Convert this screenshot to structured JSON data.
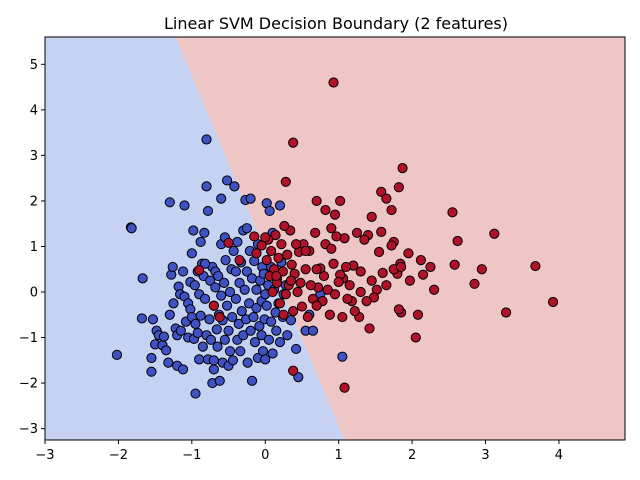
{
  "chart_data": {
    "type": "scatter",
    "title": "Linear SVM Decision Boundary (2 features)",
    "xlabel": "",
    "ylabel": "",
    "xlim": [
      -3.0,
      4.9
    ],
    "ylim": [
      -3.25,
      5.6
    ],
    "xticks": [
      -3,
      -2,
      -1,
      0,
      1,
      2,
      3,
      4
    ],
    "yticks": [
      -3,
      -2,
      -1,
      0,
      1,
      2,
      3,
      4,
      5
    ],
    "decision_boundary": {
      "points": [
        [
          -1.22,
          5.6
        ],
        [
          1.08,
          -3.25
        ]
      ]
    },
    "regions": {
      "left_color": "#c6d2f2",
      "right_color": "#efc6c6"
    },
    "series": [
      {
        "class": 0,
        "color": "#4051c4",
        "points": [
          [
            -2.02,
            -1.38
          ],
          [
            -1.83,
            1.42
          ],
          [
            -1.82,
            1.4
          ],
          [
            -1.67,
            0.3
          ],
          [
            -1.68,
            -0.58
          ],
          [
            -1.55,
            -1.45
          ],
          [
            -1.55,
            -1.75
          ],
          [
            -1.53,
            -0.6
          ],
          [
            -1.5,
            -1.15
          ],
          [
            -1.48,
            -0.85
          ],
          [
            -1.45,
            -0.95
          ],
          [
            -1.4,
            -1.17
          ],
          [
            -1.35,
            -1.28
          ],
          [
            -1.32,
            -1.55
          ],
          [
            -1.3,
            -0.5
          ],
          [
            -1.3,
            1.97
          ],
          [
            -1.28,
            0.38
          ],
          [
            -1.26,
            0.55
          ],
          [
            -1.25,
            -0.25
          ],
          [
            -1.22,
            -0.8
          ],
          [
            -1.2,
            -1.62
          ],
          [
            -1.2,
            -0.95
          ],
          [
            -1.18,
            0.12
          ],
          [
            -1.16,
            -0.05
          ],
          [
            -1.15,
            -0.85
          ],
          [
            -1.12,
            0.45
          ],
          [
            -1.12,
            -1.7
          ],
          [
            -1.1,
            -0.1
          ],
          [
            -1.1,
            1.9
          ],
          [
            -1.08,
            -0.65
          ],
          [
            -1.05,
            -0.25
          ],
          [
            -1.05,
            -1.0
          ],
          [
            -1.02,
            0.22
          ],
          [
            -1.02,
            -0.38
          ],
          [
            -1.0,
            0.85
          ],
          [
            -1.0,
            -0.55
          ],
          [
            -0.98,
            1.35
          ],
          [
            -0.97,
            -1.03
          ],
          [
            -0.96,
            0.15
          ],
          [
            -0.95,
            -2.23
          ],
          [
            -0.92,
            -0.9
          ],
          [
            -0.92,
            0.45
          ],
          [
            -0.9,
            -0.05
          ],
          [
            -0.9,
            -1.48
          ],
          [
            -0.88,
            1.1
          ],
          [
            -0.88,
            -0.52
          ],
          [
            -0.86,
            0.62
          ],
          [
            -0.85,
            -1.2
          ],
          [
            -0.84,
            0.35
          ],
          [
            -0.83,
            1.3
          ],
          [
            -0.82,
            -0.15
          ],
          [
            -0.8,
            3.35
          ],
          [
            -0.8,
            -0.95
          ],
          [
            -0.8,
            2.32
          ],
          [
            -0.78,
            -1.48
          ],
          [
            -0.78,
            1.78
          ],
          [
            -0.76,
            -0.6
          ],
          [
            -0.75,
            0.25
          ],
          [
            -0.74,
            -1.05
          ],
          [
            -0.72,
            0.55
          ],
          [
            -0.72,
            -2.0
          ],
          [
            -0.7,
            -0.3
          ],
          [
            -0.7,
            -1.7
          ],
          [
            -0.68,
            0.1
          ],
          [
            -0.68,
            0.45
          ],
          [
            -0.66,
            -0.82
          ],
          [
            -0.65,
            -1.2
          ],
          [
            -0.64,
            0.35
          ],
          [
            -0.63,
            -0.5
          ],
          [
            -0.62,
            -1.95
          ],
          [
            -0.6,
            -0.08
          ],
          [
            -0.6,
            1.05
          ],
          [
            -0.6,
            2.05
          ],
          [
            -0.58,
            -0.62
          ],
          [
            -0.58,
            -1.55
          ],
          [
            -0.56,
            0.2
          ],
          [
            -0.55,
            -1.05
          ],
          [
            -0.54,
            0.7
          ],
          [
            -0.52,
            -0.3
          ],
          [
            -0.52,
            2.45
          ],
          [
            -0.5,
            -1.62
          ],
          [
            -0.5,
            -0.85
          ],
          [
            -0.48,
            0.0
          ],
          [
            -0.48,
            -1.3
          ],
          [
            -0.46,
            0.5
          ],
          [
            -0.45,
            -0.55
          ],
          [
            -0.44,
            -1.5
          ],
          [
            -0.43,
            0.9
          ],
          [
            -0.42,
            2.32
          ],
          [
            -0.4,
            -0.15
          ],
          [
            -0.4,
            0.45
          ],
          [
            -0.38,
            -1.05
          ],
          [
            -0.38,
            1.1
          ],
          [
            -0.36,
            -0.7
          ],
          [
            -0.35,
            0.2
          ],
          [
            -0.34,
            -1.3
          ],
          [
            -0.33,
            0.65
          ],
          [
            -0.32,
            -0.42
          ],
          [
            -0.3,
            -0.95
          ],
          [
            -0.3,
            1.35
          ],
          [
            -0.28,
            0.05
          ],
          [
            -0.27,
            2.02
          ],
          [
            -0.26,
            -0.6
          ],
          [
            -0.25,
            0.45
          ],
          [
            -0.24,
            -1.55
          ],
          [
            -0.22,
            -0.25
          ],
          [
            -0.21,
            0.9
          ],
          [
            -0.2,
            -0.85
          ],
          [
            -0.2,
            2.05
          ],
          [
            -0.18,
            0.3
          ],
          [
            -0.18,
            -1.95
          ],
          [
            -0.16,
            -0.55
          ],
          [
            -0.15,
            0.68
          ],
          [
            -0.14,
            -1.1
          ],
          [
            -0.12,
            0.05
          ],
          [
            -0.12,
            -0.35
          ],
          [
            -0.1,
            -1.45
          ],
          [
            -0.1,
            1.05
          ],
          [
            -0.08,
            -0.75
          ],
          [
            -0.07,
            0.25
          ],
          [
            -0.05,
            -0.2
          ],
          [
            -0.05,
            -0.95
          ],
          [
            -0.04,
            0.55
          ],
          [
            -0.03,
            -1.3
          ],
          [
            -0.02,
            0.4
          ],
          [
            -0.01,
            -0.6
          ],
          [
            0.0,
            -0.05
          ],
          [
            0.02,
            1.95
          ],
          [
            0.02,
            -0.3
          ],
          [
            0.04,
            0.15
          ],
          [
            0.05,
            -1.05
          ],
          [
            0.06,
            1.78
          ],
          [
            0.08,
            -0.65
          ],
          [
            0.08,
            0.55
          ],
          [
            0.1,
            -1.35
          ],
          [
            0.12,
            0.05
          ],
          [
            0.14,
            -0.45
          ],
          [
            0.15,
            -0.85
          ],
          [
            0.16,
            0.3
          ],
          [
            0.18,
            -0.25
          ],
          [
            0.2,
            1.9
          ],
          [
            0.2,
            -1.1
          ],
          [
            0.22,
            0.65
          ],
          [
            0.24,
            -0.55
          ],
          [
            0.25,
            -0.05
          ],
          [
            0.28,
            0.15
          ],
          [
            0.3,
            -0.95
          ],
          [
            0.35,
            -0.62
          ],
          [
            0.42,
            -1.25
          ],
          [
            0.45,
            -1.87
          ],
          [
            0.55,
            -0.85
          ],
          [
            0.6,
            -0.5
          ],
          [
            0.65,
            -0.85
          ],
          [
            0.75,
            -0.05
          ],
          [
            1.05,
            -1.42
          ],
          [
            0.1,
            1.3
          ],
          [
            -0.25,
            1.4
          ],
          [
            -0.55,
            1.2
          ],
          [
            -0.95,
            -0.7
          ],
          [
            -1.38,
            -0.98
          ],
          [
            -0.7,
            -1.5
          ],
          [
            0.0,
            -1.48
          ],
          [
            -0.82,
            0.62
          ]
        ]
      },
      {
        "class": 1,
        "color": "#b0122a",
        "points": [
          [
            0.93,
            4.6
          ],
          [
            0.38,
            3.28
          ],
          [
            0.28,
            2.42
          ],
          [
            1.87,
            2.72
          ],
          [
            1.58,
            2.2
          ],
          [
            1.65,
            2.05
          ],
          [
            1.82,
            2.3
          ],
          [
            1.72,
            1.8
          ],
          [
            0.7,
            2.0
          ],
          [
            0.82,
            1.8
          ],
          [
            0.95,
            1.7
          ],
          [
            1.02,
            2.0
          ],
          [
            2.55,
            1.75
          ],
          [
            2.62,
            1.12
          ],
          [
            3.12,
            1.28
          ],
          [
            3.68,
            0.57
          ],
          [
            3.92,
            -0.22
          ],
          [
            3.28,
            -0.45
          ],
          [
            2.95,
            0.5
          ],
          [
            2.85,
            0.18
          ],
          [
            2.58,
            0.6
          ],
          [
            2.3,
            0.05
          ],
          [
            2.25,
            0.55
          ],
          [
            2.15,
            0.38
          ],
          [
            2.12,
            0.7
          ],
          [
            2.08,
            -0.5
          ],
          [
            2.05,
            -1.0
          ],
          [
            1.97,
            0.25
          ],
          [
            1.95,
            0.85
          ],
          [
            1.85,
            -0.45
          ],
          [
            1.84,
            0.62
          ],
          [
            1.82,
            -0.38
          ],
          [
            1.8,
            0.4
          ],
          [
            1.75,
            0.5
          ],
          [
            1.75,
            1.1
          ],
          [
            1.72,
            1.02
          ],
          [
            1.65,
            0.15
          ],
          [
            1.6,
            0.42
          ],
          [
            1.58,
            1.32
          ],
          [
            1.55,
            0.88
          ],
          [
            1.52,
            0.05
          ],
          [
            1.48,
            -0.12
          ],
          [
            1.45,
            1.65
          ],
          [
            1.42,
            -0.8
          ],
          [
            1.4,
            1.25
          ],
          [
            1.38,
            -0.2
          ],
          [
            1.35,
            1.15
          ],
          [
            1.3,
            0.45
          ],
          [
            1.28,
            -0.55
          ],
          [
            1.25,
            1.3
          ],
          [
            1.22,
            -0.42
          ],
          [
            1.2,
            0.58
          ],
          [
            1.18,
            -0.2
          ],
          [
            1.15,
            0.15
          ],
          [
            1.12,
            -0.15
          ],
          [
            1.1,
            0.55
          ],
          [
            1.08,
            1.18
          ],
          [
            1.06,
            0.3
          ],
          [
            1.05,
            -0.55
          ],
          [
            1.02,
            0.38
          ],
          [
            1.0,
            0.22
          ],
          [
            0.97,
            1.22
          ],
          [
            0.95,
            -0.05
          ],
          [
            0.93,
            0.62
          ],
          [
            0.9,
            1.4
          ],
          [
            0.88,
            -0.5
          ],
          [
            0.85,
            0.05
          ],
          [
            0.82,
            1.05
          ],
          [
            0.8,
            0.35
          ],
          [
            0.78,
            -0.2
          ],
          [
            0.75,
            0.52
          ],
          [
            0.72,
            0.1
          ],
          [
            0.7,
            0.5
          ],
          [
            0.68,
            1.3
          ],
          [
            0.65,
            -0.15
          ],
          [
            0.62,
            0.15
          ],
          [
            0.6,
            0.9
          ],
          [
            0.58,
            -0.55
          ],
          [
            0.55,
            0.5
          ],
          [
            0.52,
            1.05
          ],
          [
            0.5,
            -0.32
          ],
          [
            0.48,
            0.2
          ],
          [
            0.46,
            0.88
          ],
          [
            0.44,
            0.0
          ],
          [
            0.42,
            1.05
          ],
          [
            0.4,
            0.4
          ],
          [
            0.38,
            -0.42
          ],
          [
            0.36,
            0.6
          ],
          [
            0.34,
            1.35
          ],
          [
            0.32,
            0.15
          ],
          [
            0.3,
            0.82
          ],
          [
            0.28,
            -0.05
          ],
          [
            0.26,
            1.45
          ],
          [
            0.24,
            0.45
          ],
          [
            0.22,
            1.05
          ],
          [
            0.2,
            -0.25
          ],
          [
            0.18,
            0.75
          ],
          [
            0.16,
            0.2
          ],
          [
            0.14,
            1.25
          ],
          [
            0.12,
            0.5
          ],
          [
            0.1,
            0.0
          ],
          [
            0.08,
            0.9
          ],
          [
            0.06,
            0.35
          ],
          [
            0.04,
            1.15
          ],
          [
            0.02,
            0.7
          ],
          [
            0.0,
            1.2
          ],
          [
            -0.05,
            1.02
          ],
          [
            -0.12,
            0.85
          ],
          [
            -0.15,
            1.22
          ],
          [
            -0.5,
            1.08
          ],
          [
            -0.35,
            0.7
          ],
          [
            -0.7,
            -0.3
          ],
          [
            -0.62,
            -0.55
          ],
          [
            -0.9,
            0.48
          ],
          [
            0.38,
            -1.73
          ],
          [
            1.08,
            -2.1
          ],
          [
            0.35,
            0.25
          ],
          [
            0.55,
            0.9
          ],
          [
            0.25,
            -0.5
          ],
          [
            0.15,
            0.35
          ],
          [
            1.3,
            0.0
          ],
          [
            1.85,
            0.55
          ],
          [
            0.9,
            0.95
          ],
          [
            1.45,
            0.25
          ],
          [
            0.7,
            -0.3
          ]
        ]
      }
    ]
  }
}
